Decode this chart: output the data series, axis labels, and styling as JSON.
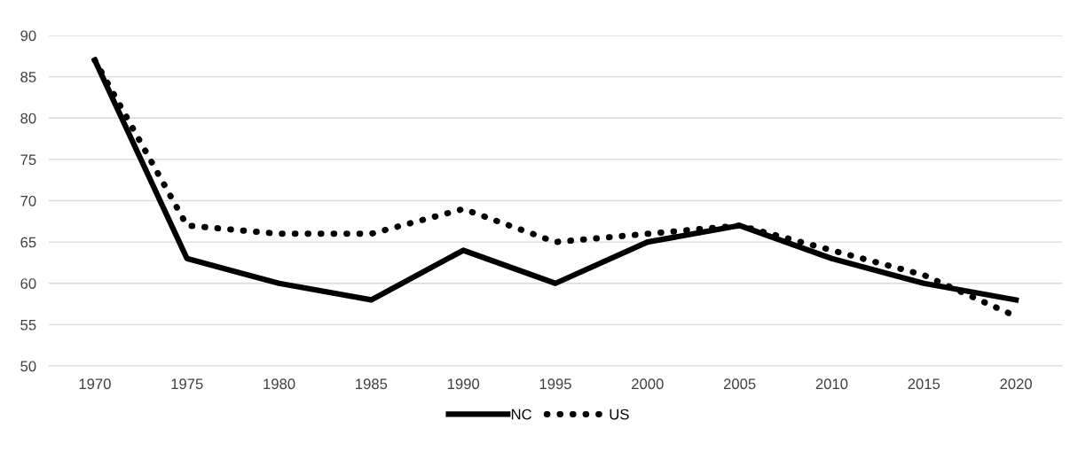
{
  "chart_data": {
    "type": "line",
    "categories": [
      "1970",
      "1975",
      "1980",
      "1985",
      "1990",
      "1995",
      "2000",
      "2005",
      "2010",
      "2015",
      "2020"
    ],
    "series": [
      {
        "name": "NC",
        "color": "#000000",
        "line_style": "solid",
        "values": [
          87,
          63,
          60,
          58,
          64,
          60,
          65,
          67,
          63,
          60,
          58
        ]
      },
      {
        "name": "US",
        "color": "#000000",
        "line_style": "dotted",
        "values": [
          87,
          67,
          66,
          66,
          69,
          65,
          66,
          67,
          64,
          61,
          56
        ]
      }
    ],
    "ylim": [
      50,
      90
    ],
    "yticks": [
      50,
      55,
      60,
      65,
      70,
      75,
      80,
      85,
      90
    ],
    "grid": "y",
    "legend": "bottom",
    "marker": "none"
  }
}
